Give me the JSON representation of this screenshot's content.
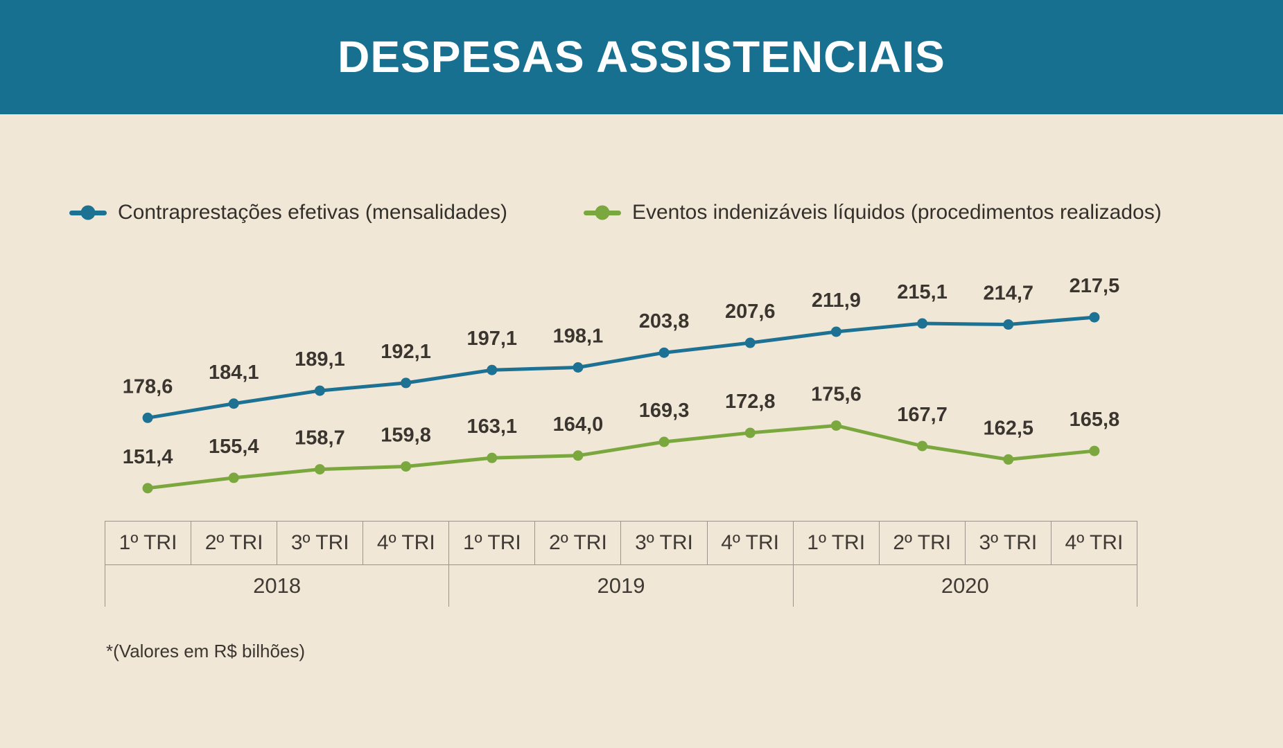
{
  "header": {
    "title": "DESPESAS ASSISTENCIAIS",
    "background_color": "#17708f",
    "text_color": "#ffffff"
  },
  "page_background": "#f1e7d7",
  "chart_data": {
    "type": "line",
    "title": "DESPESAS ASSISTENCIAIS",
    "categories": [
      "1º TRI",
      "2º TRI",
      "3º TRI",
      "4º TRI",
      "1º TRI",
      "2º TRI",
      "3º TRI",
      "4º TRI",
      "1º TRI",
      "2º TRI",
      "3º TRI",
      "4º TRI"
    ],
    "year_groups": [
      {
        "label": "2018",
        "span": 4
      },
      {
        "label": "2019",
        "span": 4
      },
      {
        "label": "2020",
        "span": 4
      }
    ],
    "series": [
      {
        "name": "Contraprestações efetivas (mensalidades)",
        "color": "#1d7193",
        "values": [
          178.6,
          184.1,
          189.1,
          192.1,
          197.1,
          198.1,
          203.8,
          207.6,
          211.9,
          215.1,
          214.7,
          217.5
        ]
      },
      {
        "name": "Eventos indenizáveis líquidos (procedimentos realizados)",
        "color": "#7ba73f",
        "values": [
          151.4,
          155.4,
          158.7,
          159.8,
          163.1,
          164.0,
          169.3,
          172.8,
          175.6,
          167.7,
          162.5,
          165.8
        ]
      }
    ],
    "decimal_separator": ",",
    "data_labels": true,
    "legend_position": "top",
    "grid": false,
    "y_axis_visible": false,
    "ylim": [
      140,
      230
    ],
    "footnote": "*(Valores em R$ bilhões)"
  }
}
